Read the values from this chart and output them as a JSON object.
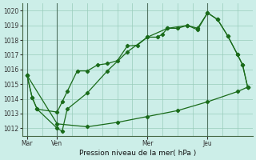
{
  "bg_color": "#cceee8",
  "grid_color": "#99ccbb",
  "line_color": "#1a6b1a",
  "title": "Pression niveau de la mer( hPa )",
  "ylim": [
    1011.5,
    1020.5
  ],
  "yticks": [
    1012,
    1013,
    1014,
    1015,
    1016,
    1017,
    1018,
    1019,
    1020
  ],
  "xtick_labels": [
    "Mar",
    "Ven",
    "Mer",
    "Jeu"
  ],
  "xtick_positions": [
    0,
    12,
    48,
    72
  ],
  "xlim": [
    -2,
    90
  ],
  "vline_positions": [
    0,
    12,
    48,
    72
  ],
  "series1_x": [
    0,
    2,
    4,
    12,
    14,
    16,
    20,
    24,
    28,
    32,
    36,
    40,
    44,
    48,
    52,
    54,
    56,
    60,
    64,
    68,
    72,
    76,
    80,
    84,
    86,
    88
  ],
  "series1_y": [
    1015.6,
    1014.1,
    1013.3,
    1013.1,
    1013.8,
    1014.5,
    1015.9,
    1015.9,
    1016.3,
    1016.4,
    1016.6,
    1017.6,
    1017.65,
    1018.2,
    1018.2,
    1018.4,
    1018.8,
    1018.8,
    1019.0,
    1018.7,
    1019.85,
    1019.4,
    1018.3,
    1017.0,
    1016.3,
    1014.8
  ],
  "series2_x": [
    0,
    2,
    4,
    12,
    14,
    16,
    24,
    32,
    40,
    48,
    56,
    64,
    68,
    72,
    76,
    80,
    84,
    86,
    88
  ],
  "series2_y": [
    1015.6,
    1014.1,
    1013.3,
    1012.0,
    1011.8,
    1013.3,
    1014.4,
    1015.9,
    1017.2,
    1018.2,
    1018.8,
    1019.0,
    1018.8,
    1019.85,
    1019.4,
    1018.3,
    1017.0,
    1016.3,
    1014.8
  ],
  "series3_x": [
    0,
    12,
    24,
    36,
    48,
    60,
    72,
    84,
    88
  ],
  "series3_y": [
    1015.6,
    1012.3,
    1012.1,
    1012.4,
    1012.8,
    1013.2,
    1013.8,
    1014.5,
    1014.8
  ],
  "figsize": [
    3.2,
    2.0
  ],
  "dpi": 100
}
